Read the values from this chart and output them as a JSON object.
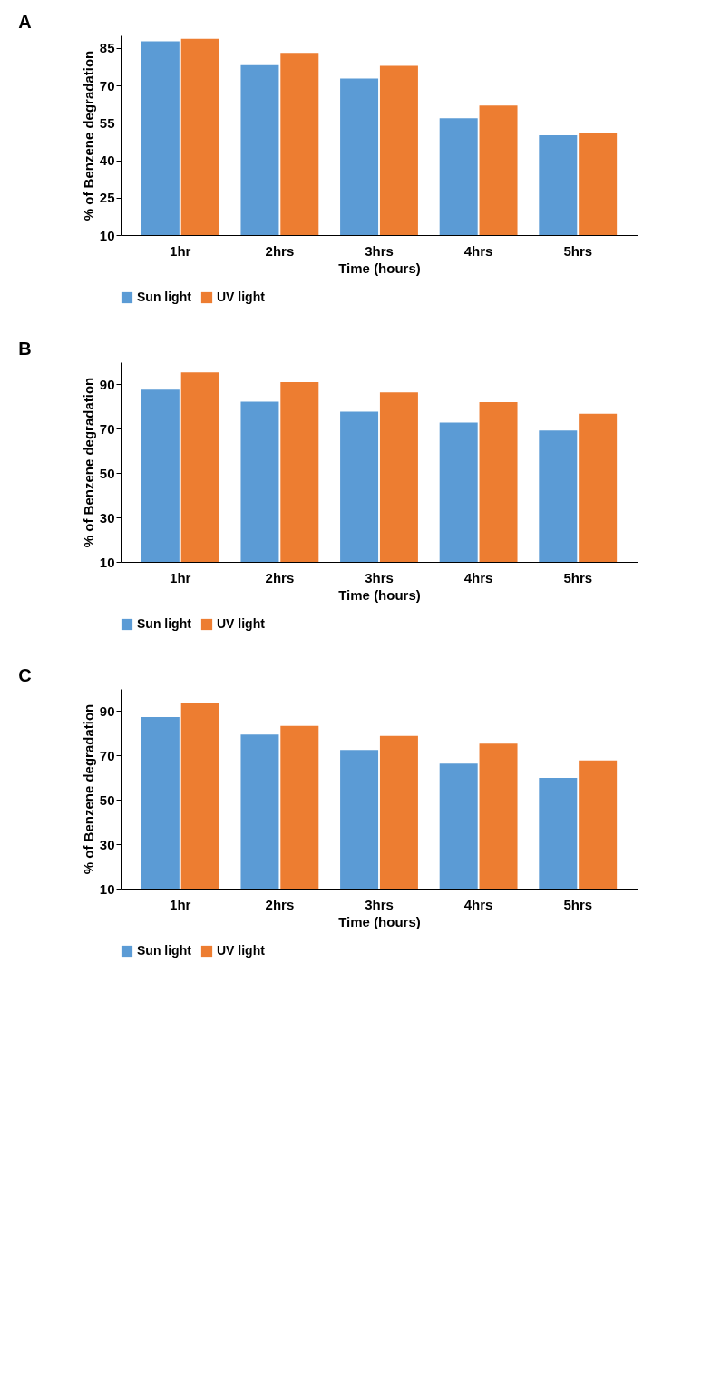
{
  "chart_data": [
    {
      "type": "bar",
      "title": "A",
      "xlabel": "Time (hours)",
      "ylabel": "% of Benzene degradation",
      "categories": [
        "1hr",
        "2hrs",
        "3hrs",
        "4hrs",
        "5hrs"
      ],
      "series": [
        {
          "name": "Sun light",
          "color": "#5b9bd5",
          "values": [
            87.6,
            78.1,
            72.7,
            56.8,
            50.0
          ]
        },
        {
          "name": "UV light",
          "color": "#ed7d31",
          "values": [
            88.6,
            83.0,
            77.8,
            61.9,
            51.0
          ]
        }
      ],
      "ylim": [
        10,
        90
      ],
      "yticks": [
        10,
        25,
        40,
        55,
        70,
        85
      ],
      "grid": false,
      "legend": "bottom"
    },
    {
      "type": "bar",
      "title": "B",
      "xlabel": "Time (hours)",
      "ylabel": "% of Benzene degradation",
      "categories": [
        "1hr",
        "2hrs",
        "3hrs",
        "4hrs",
        "5hrs"
      ],
      "series": [
        {
          "name": "Sun light",
          "color": "#5b9bd5",
          "values": [
            87.6,
            82.2,
            77.7,
            72.8,
            69.2
          ]
        },
        {
          "name": "UV light",
          "color": "#ed7d31",
          "values": [
            95.4,
            91.0,
            86.4,
            82.0,
            76.8
          ]
        }
      ],
      "ylim": [
        10,
        100
      ],
      "yticks": [
        10,
        30,
        50,
        70,
        90
      ],
      "grid": false,
      "legend": "bottom"
    },
    {
      "type": "bar",
      "title": "C",
      "xlabel": "Time (hours)",
      "ylabel": "% of Benzene degradation",
      "categories": [
        "1hr",
        "2hrs",
        "3hrs",
        "4hrs",
        "5hrs"
      ],
      "series": [
        {
          "name": "Sun light",
          "color": "#5b9bd5",
          "values": [
            87.3,
            79.4,
            72.5,
            66.4,
            59.9
          ]
        },
        {
          "name": "UV light",
          "color": "#ed7d31",
          "values": [
            93.8,
            83.3,
            78.8,
            75.4,
            67.8
          ]
        }
      ],
      "ylim": [
        10,
        100
      ],
      "yticks": [
        10,
        30,
        50,
        70,
        90
      ],
      "grid": false,
      "legend": "bottom"
    }
  ]
}
